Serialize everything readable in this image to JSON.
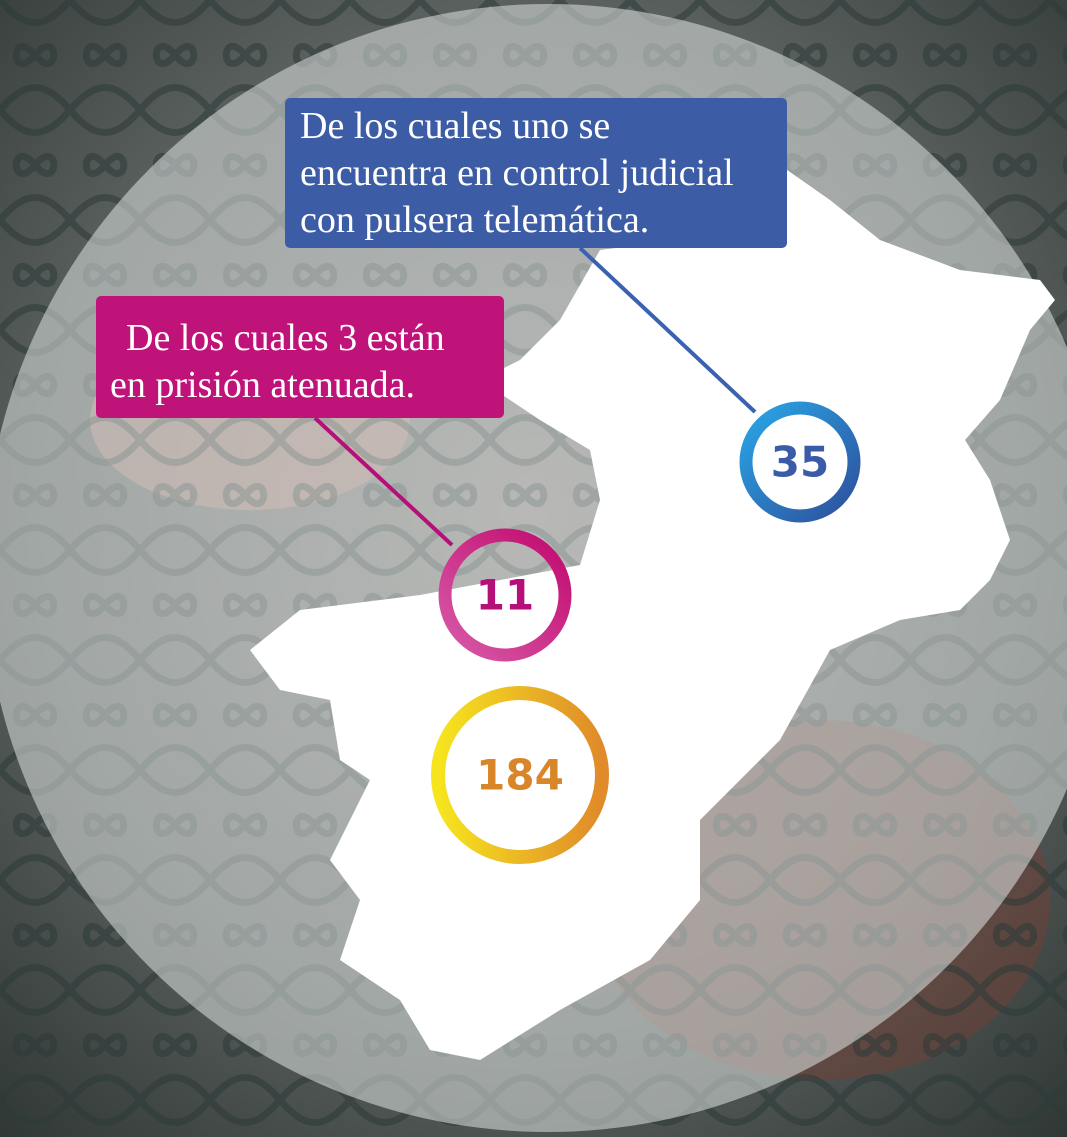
{
  "markers": [
    {
      "value": 35
    },
    {
      "value": 11
    },
    {
      "value": 184
    }
  ],
  "callouts": [
    {
      "lines": [
        "De los cuales uno se",
        "encuentra en control judicial",
        "con pulsera telemática."
      ]
    },
    {
      "lines": [
        "De los cuales 3 están",
        "en prisión atenuada."
      ]
    }
  ]
}
